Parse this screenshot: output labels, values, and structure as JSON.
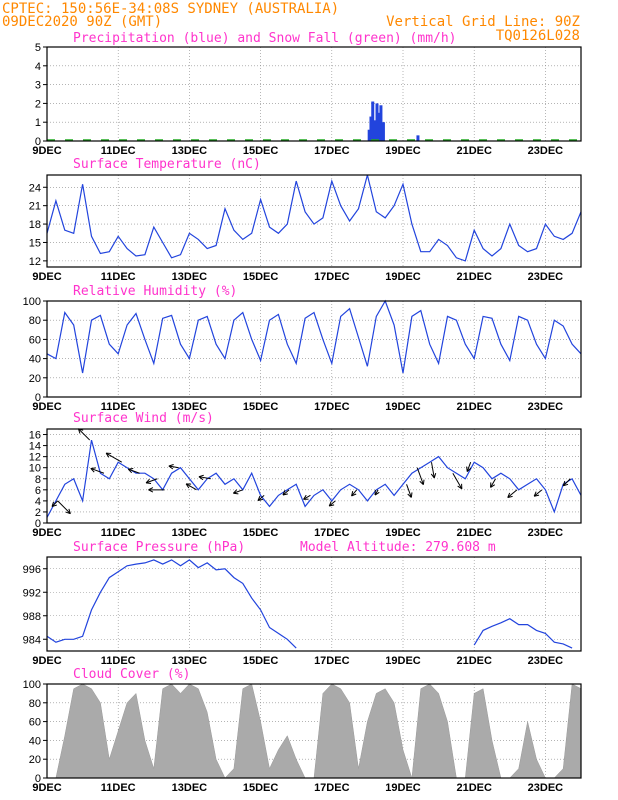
{
  "header": {
    "station": "CPTEC:   150:56E-34:08S   SYDNEY (AUSTRALIA)",
    "date": "09DEC2020 90Z (GMT)",
    "grid_note": "Vertical Grid Line: 90Z",
    "run_id": "TQ0126L028"
  },
  "colors": {
    "title": "#ff33cc",
    "header": "#ff8800",
    "line": "#2244dd",
    "precip": "#2244dd",
    "snow": "#22aa22",
    "cloud": "#aaaaaa",
    "arrow": "#000000"
  },
  "x_tick_labels": [
    "9DEC",
    "11DEC",
    "13DEC",
    "15DEC",
    "17DEC",
    "19DEC",
    "21DEC",
    "23DEC"
  ],
  "x_tick_days": [
    0,
    2,
    4,
    6,
    8,
    10,
    12,
    14
  ],
  "x_axis": {
    "start": "09DEC2020",
    "end_day": 15
  },
  "chart_data": [
    {
      "id": "precip",
      "type": "bar",
      "title": "Precipitation (blue) and Snow Fall (green) (mm/h)",
      "ylim": [
        0,
        5
      ],
      "yticks": [
        0,
        1,
        2,
        3,
        4,
        5
      ],
      "grid": true,
      "series": [
        {
          "name": "Precipitation",
          "color": "blue",
          "x": [
            9.05,
            9.1,
            9.15,
            9.2,
            9.27,
            9.33,
            9.38,
            9.45,
            10.42
          ],
          "values": [
            0.6,
            1.3,
            2.1,
            1.1,
            2.0,
            1.5,
            1.9,
            1.0,
            0.3
          ]
        },
        {
          "name": "Snow Fall",
          "color": "green",
          "x": [],
          "values": []
        }
      ]
    },
    {
      "id": "temperature",
      "type": "line",
      "title": "Surface Temperature (nC)",
      "ylim": [
        11,
        26
      ],
      "yticks": [
        12,
        15,
        18,
        21,
        24
      ],
      "grid": true,
      "x": [
        0,
        0.25,
        0.5,
        0.75,
        1,
        1.25,
        1.5,
        1.75,
        2,
        2.25,
        2.5,
        2.75,
        3,
        3.25,
        3.5,
        3.75,
        4,
        4.25,
        4.5,
        4.75,
        5,
        5.25,
        5.5,
        5.75,
        6,
        6.25,
        6.5,
        6.75,
        7,
        7.25,
        7.5,
        7.75,
        8,
        8.25,
        8.5,
        8.75,
        9,
        9.25,
        9.5,
        9.75,
        10,
        10.25,
        10.5,
        10.75,
        11,
        11.25,
        11.5,
        11.75,
        12,
        12.25,
        12.5,
        12.75,
        13,
        13.25,
        13.5,
        13.75,
        14,
        14.25,
        14.5,
        14.75,
        15
      ],
      "y": [
        16.5,
        21.8,
        17.0,
        16.5,
        24.5,
        16.0,
        13.2,
        13.5,
        16.0,
        14.0,
        12.8,
        13.0,
        17.5,
        15.0,
        12.5,
        13.0,
        16.5,
        15.5,
        14.0,
        14.5,
        20.5,
        17.0,
        15.5,
        16.5,
        22.0,
        17.5,
        16.5,
        18.0,
        25.0,
        20.0,
        18.0,
        19.0,
        25.0,
        21.0,
        18.5,
        20.5,
        26.0,
        20.0,
        19.0,
        21.0,
        24.5,
        18.0,
        13.5,
        13.5,
        15.5,
        14.5,
        12.5,
        12.0,
        17.0,
        14.0,
        12.8,
        14.0,
        18.0,
        14.5,
        13.5,
        14.0,
        18.0,
        16.0,
        15.5,
        16.5,
        20.0
      ]
    },
    {
      "id": "humidity",
      "type": "line",
      "title": "Relative Humidity (%)",
      "ylim": [
        0,
        100
      ],
      "yticks": [
        0,
        20,
        40,
        60,
        80,
        100
      ],
      "grid": true,
      "x": [
        0,
        0.25,
        0.5,
        0.75,
        1,
        1.25,
        1.5,
        1.75,
        2,
        2.25,
        2.5,
        2.75,
        3,
        3.25,
        3.5,
        3.75,
        4,
        4.25,
        4.5,
        4.75,
        5,
        5.25,
        5.5,
        5.75,
        6,
        6.25,
        6.5,
        6.75,
        7,
        7.25,
        7.5,
        7.75,
        8,
        8.25,
        8.5,
        8.75,
        9,
        9.25,
        9.5,
        9.75,
        10,
        10.25,
        10.5,
        10.75,
        11,
        11.25,
        11.5,
        11.75,
        12,
        12.25,
        12.5,
        12.75,
        13,
        13.25,
        13.5,
        13.75,
        14,
        14.25,
        14.5,
        14.75,
        15
      ],
      "y": [
        45,
        40,
        88,
        75,
        25,
        80,
        85,
        55,
        45,
        75,
        87,
        60,
        35,
        82,
        85,
        55,
        40,
        80,
        84,
        55,
        40,
        80,
        88,
        60,
        38,
        80,
        86,
        55,
        35,
        82,
        88,
        60,
        35,
        84,
        92,
        62,
        32,
        84,
        100,
        75,
        25,
        84,
        90,
        55,
        35,
        84,
        80,
        55,
        40,
        84,
        82,
        55,
        38,
        84,
        80,
        55,
        40,
        80,
        74,
        55,
        45
      ]
    },
    {
      "id": "wind",
      "type": "line",
      "title": "Surface Wind (m/s)",
      "ylim": [
        0,
        17
      ],
      "yticks": [
        0,
        2,
        4,
        6,
        8,
        10,
        12,
        14,
        16
      ],
      "grid": true,
      "x": [
        0,
        0.25,
        0.5,
        0.75,
        1,
        1.25,
        1.5,
        1.75,
        2,
        2.25,
        2.5,
        2.75,
        3,
        3.25,
        3.5,
        3.75,
        4,
        4.25,
        4.5,
        4.75,
        5,
        5.25,
        5.5,
        5.75,
        6,
        6.25,
        6.5,
        6.75,
        7,
        7.25,
        7.5,
        7.75,
        8,
        8.25,
        8.5,
        8.75,
        9,
        9.25,
        9.5,
        9.75,
        10,
        10.25,
        10.5,
        10.75,
        11,
        11.25,
        11.5,
        11.75,
        12,
        12.25,
        12.5,
        12.75,
        13,
        13.25,
        13.5,
        13.75,
        14,
        14.25,
        14.5,
        14.75,
        15
      ],
      "y": [
        1,
        4,
        7,
        8,
        4,
        15,
        9,
        8,
        11,
        10,
        9,
        9,
        8,
        6,
        9,
        10,
        8,
        6,
        8,
        9,
        7,
        8,
        6,
        9,
        5,
        3,
        5,
        6,
        7,
        3,
        5,
        6,
        4,
        6,
        7,
        6,
        4,
        6,
        7,
        5,
        7,
        9,
        10,
        11,
        12,
        10,
        9,
        8,
        11,
        10,
        8,
        9,
        8,
        6,
        7,
        8,
        6,
        2,
        7,
        8,
        5
      ],
      "arrows": [
        {
          "x": 0.3,
          "speed": 4,
          "dir": 225
        },
        {
          "x": 0.3,
          "speed": 9,
          "dir": 135
        },
        {
          "x": 1.2,
          "speed": 8,
          "dir": 315
        },
        {
          "x": 1.6,
          "speed": 7,
          "dir": 290
        },
        {
          "x": 2.1,
          "speed": 9,
          "dir": 300
        },
        {
          "x": 2.6,
          "speed": 6,
          "dir": 290
        },
        {
          "x": 3.1,
          "speed": 6,
          "dir": 250
        },
        {
          "x": 3.3,
          "speed": 8,
          "dir": 270
        },
        {
          "x": 3.7,
          "speed": 5,
          "dir": 280
        },
        {
          "x": 4.2,
          "speed": 6,
          "dir": 300
        },
        {
          "x": 4.6,
          "speed": 6,
          "dir": 280
        },
        {
          "x": 5.5,
          "speed": 5,
          "dir": 250
        },
        {
          "x": 6.1,
          "speed": 4,
          "dir": 230
        },
        {
          "x": 6.8,
          "speed": 4,
          "dir": 230
        },
        {
          "x": 7.4,
          "speed": 4,
          "dir": 240
        },
        {
          "x": 8.1,
          "speed": 4,
          "dir": 230
        },
        {
          "x": 8.7,
          "speed": 4,
          "dir": 220
        },
        {
          "x": 9.3,
          "speed": 3,
          "dir": 210
        },
        {
          "x": 10.1,
          "speed": 7,
          "dir": 160
        },
        {
          "x": 10.4,
          "speed": 9,
          "dir": 160
        },
        {
          "x": 10.8,
          "speed": 8,
          "dir": 170
        },
        {
          "x": 11.4,
          "speed": 9,
          "dir": 150
        },
        {
          "x": 11.9,
          "speed": 5,
          "dir": 200
        },
        {
          "x": 12.6,
          "speed": 5,
          "dir": 210
        },
        {
          "x": 13.2,
          "speed": 6,
          "dir": 230
        },
        {
          "x": 13.9,
          "speed": 5,
          "dir": 230
        },
        {
          "x": 14.7,
          "speed": 5,
          "dir": 225
        }
      ]
    },
    {
      "id": "pressure",
      "type": "line",
      "title": "Surface Pressure (hPa)",
      "annotation": "Model Altitude: 279.608 m",
      "ylim": [
        982,
        998
      ],
      "yticks": [
        984,
        988,
        992,
        996
      ],
      "grid": true,
      "x": [
        0,
        0.25,
        0.5,
        0.75,
        1,
        1.25,
        1.5,
        1.75,
        2,
        2.25,
        2.5,
        2.75,
        3,
        3.25,
        3.5,
        3.75,
        4,
        4.25,
        4.5,
        4.75,
        5,
        5.25,
        5.5,
        5.75,
        6,
        6.25,
        6.5,
        6.75,
        7,
        12,
        12.25,
        12.5,
        12.75,
        13,
        13.25,
        13.5,
        13.75,
        14,
        14.25,
        14.5,
        14.75
      ],
      "y": [
        984.5,
        983.5,
        984.0,
        984.0,
        984.5,
        989.0,
        992.0,
        994.5,
        995.5,
        996.5,
        996.8,
        997.0,
        997.5,
        996.8,
        997.5,
        996.5,
        997.5,
        996.2,
        997.0,
        995.8,
        996.0,
        994.5,
        993.5,
        991.0,
        989.0,
        986.0,
        985.0,
        984.0,
        982.5,
        983.0,
        985.5,
        986.2,
        986.8,
        987.5,
        986.5,
        986.5,
        985.5,
        985.0,
        983.5,
        983.2,
        982.5
      ]
    },
    {
      "id": "cloud",
      "type": "area",
      "title": "Cloud Cover (%)",
      "ylim": [
        0,
        100
      ],
      "yticks": [
        0,
        20,
        40,
        60,
        80,
        100
      ],
      "grid": true,
      "x": [
        0,
        0.25,
        0.5,
        0.75,
        1,
        1.25,
        1.5,
        1.75,
        2,
        2.25,
        2.5,
        2.75,
        3,
        3.25,
        3.5,
        3.75,
        4,
        4.25,
        4.5,
        4.75,
        5,
        5.25,
        5.5,
        5.75,
        6,
        6.25,
        6.5,
        6.75,
        7,
        7.25,
        7.5,
        7.75,
        8,
        8.25,
        8.5,
        8.75,
        9,
        9.25,
        9.5,
        9.75,
        10,
        10.25,
        10.5,
        10.75,
        11,
        11.25,
        11.5,
        11.75,
        12,
        12.25,
        12.5,
        12.75,
        13,
        13.25,
        13.5,
        13.75,
        14,
        14.25,
        14.5,
        14.75,
        15
      ],
      "y": [
        0,
        0,
        45,
        95,
        100,
        95,
        80,
        20,
        50,
        80,
        90,
        40,
        10,
        95,
        100,
        90,
        100,
        95,
        70,
        20,
        0,
        10,
        95,
        100,
        60,
        10,
        30,
        45,
        20,
        0,
        0,
        90,
        100,
        95,
        80,
        10,
        60,
        90,
        95,
        80,
        30,
        0,
        95,
        100,
        90,
        60,
        0,
        0,
        90,
        95,
        40,
        0,
        0,
        10,
        60,
        20,
        0,
        0,
        10,
        100,
        95
      ]
    }
  ]
}
